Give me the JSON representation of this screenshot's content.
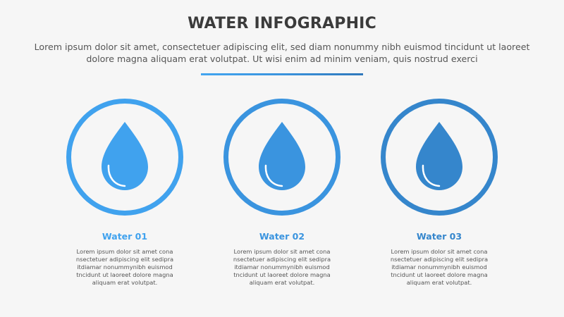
{
  "header": {
    "title": "WATER INFOGRAPHIC",
    "subtitle": "Lorem ipsum dolor sit amet, consectetuer adipiscing elit, sed diam nonummy nibh euismod tincidunt ut laoreet dolore magna aliquam erat volutpat. Ut wisi enim ad minim veniam, quis nostrud exerci"
  },
  "items": [
    {
      "label": "Water 01",
      "icon": "water-drop-icon",
      "color": "#40a2ee",
      "description": "Lorem ipsum dolor sit amet cona nsectetuer adipiscing elit sedipra itdiamar nonummynibh euismod tncidunt ut laoreet dolore magna aliquam erat volutpat."
    },
    {
      "label": "Water 02",
      "icon": "water-drop-icon",
      "color": "#3a94df",
      "description": "Lorem ipsum dolor sit amet cona nsectetuer adipiscing elit sedipra itdiamar nonummynibh euismod tncidunt ut laoreet dolore magna aliquam erat volutpat."
    },
    {
      "label": "Water 03",
      "icon": "water-drop-icon",
      "color": "#3586cc",
      "description": "Lorem ipsum dolor sit amet cona nsectetuer adipiscing elit sedipra itdiamar nonummynibh euismod tncidunt ut laoreet dolore magna aliquam erat volutpat."
    }
  ]
}
